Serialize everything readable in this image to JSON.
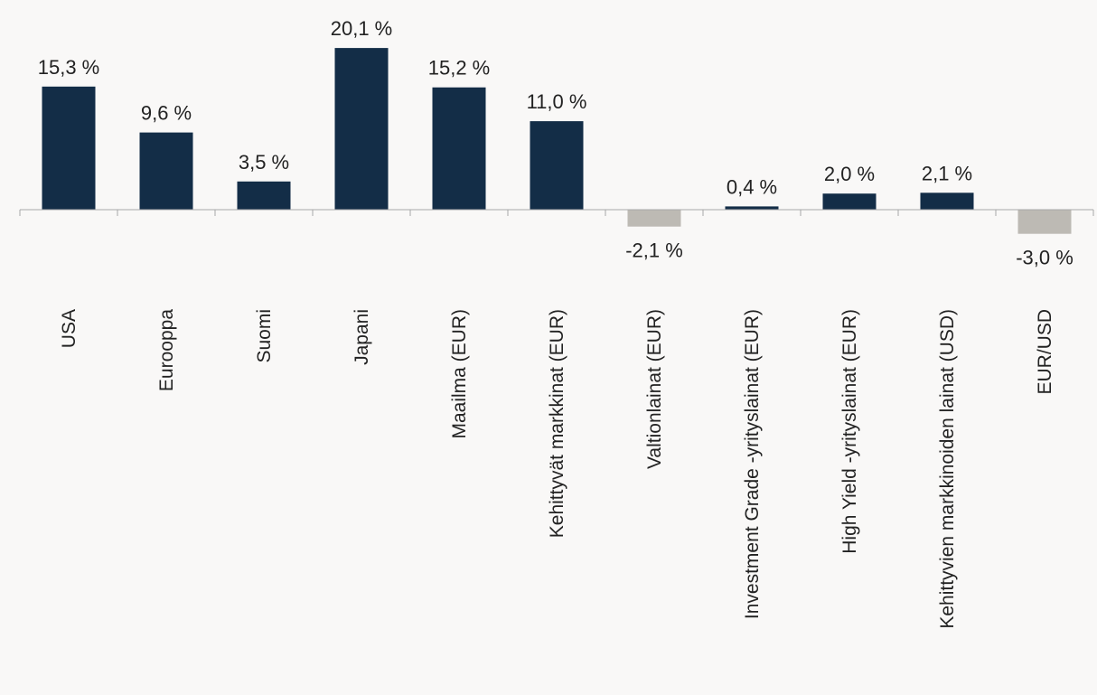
{
  "chart_data": {
    "type": "bar",
    "title": "",
    "xlabel": "",
    "ylabel": "",
    "categories": [
      "USA",
      "Eurooppa",
      "Suomi",
      "Japani",
      "Maailma (EUR)",
      "Kehittyvät markkinat (EUR)",
      "Valtionlainat (EUR)",
      "Investment Grade -yrityslainat (EUR)",
      "High Yield -yrityslainat (EUR)",
      "Kehittyvien markkinoiden lainat (USD)",
      "EUR/USD"
    ],
    "values": [
      15.3,
      9.6,
      3.5,
      20.1,
      15.2,
      11.0,
      -2.1,
      0.4,
      2.0,
      2.1,
      -3.0
    ],
    "value_labels": [
      "15,3 %",
      "9,6 %",
      "3,5 %",
      "20,1 %",
      "15,2 %",
      "11,0 %",
      "-2,1 %",
      "0,4 %",
      "2,0 %",
      "2,1 %",
      "-3,0 %"
    ],
    "grid": false,
    "legend": "none",
    "colors": {
      "positive": "#132d47",
      "negative": "#bdbab4",
      "axis": "#a8a8a8",
      "text": "#222222",
      "background": "#f9f8f7"
    }
  }
}
